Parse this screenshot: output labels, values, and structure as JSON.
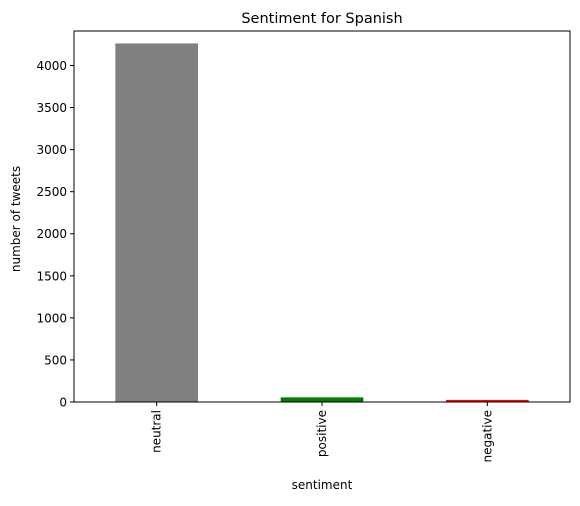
{
  "chart_data": {
    "type": "bar",
    "title": "Sentiment for Spanish",
    "xlabel": "sentiment",
    "ylabel": "number of tweets",
    "categories": [
      "neutral",
      "positive",
      "negative"
    ],
    "values": [
      4262,
      55,
      25
    ],
    "bar_colors": [
      "#808080",
      "#008000",
      "#ff0000"
    ],
    "ylim": [
      0,
      4410
    ],
    "yticks": [
      0,
      500,
      1000,
      1500,
      2000,
      2500,
      3000,
      3500,
      4000
    ],
    "grid": false,
    "legend": false
  }
}
